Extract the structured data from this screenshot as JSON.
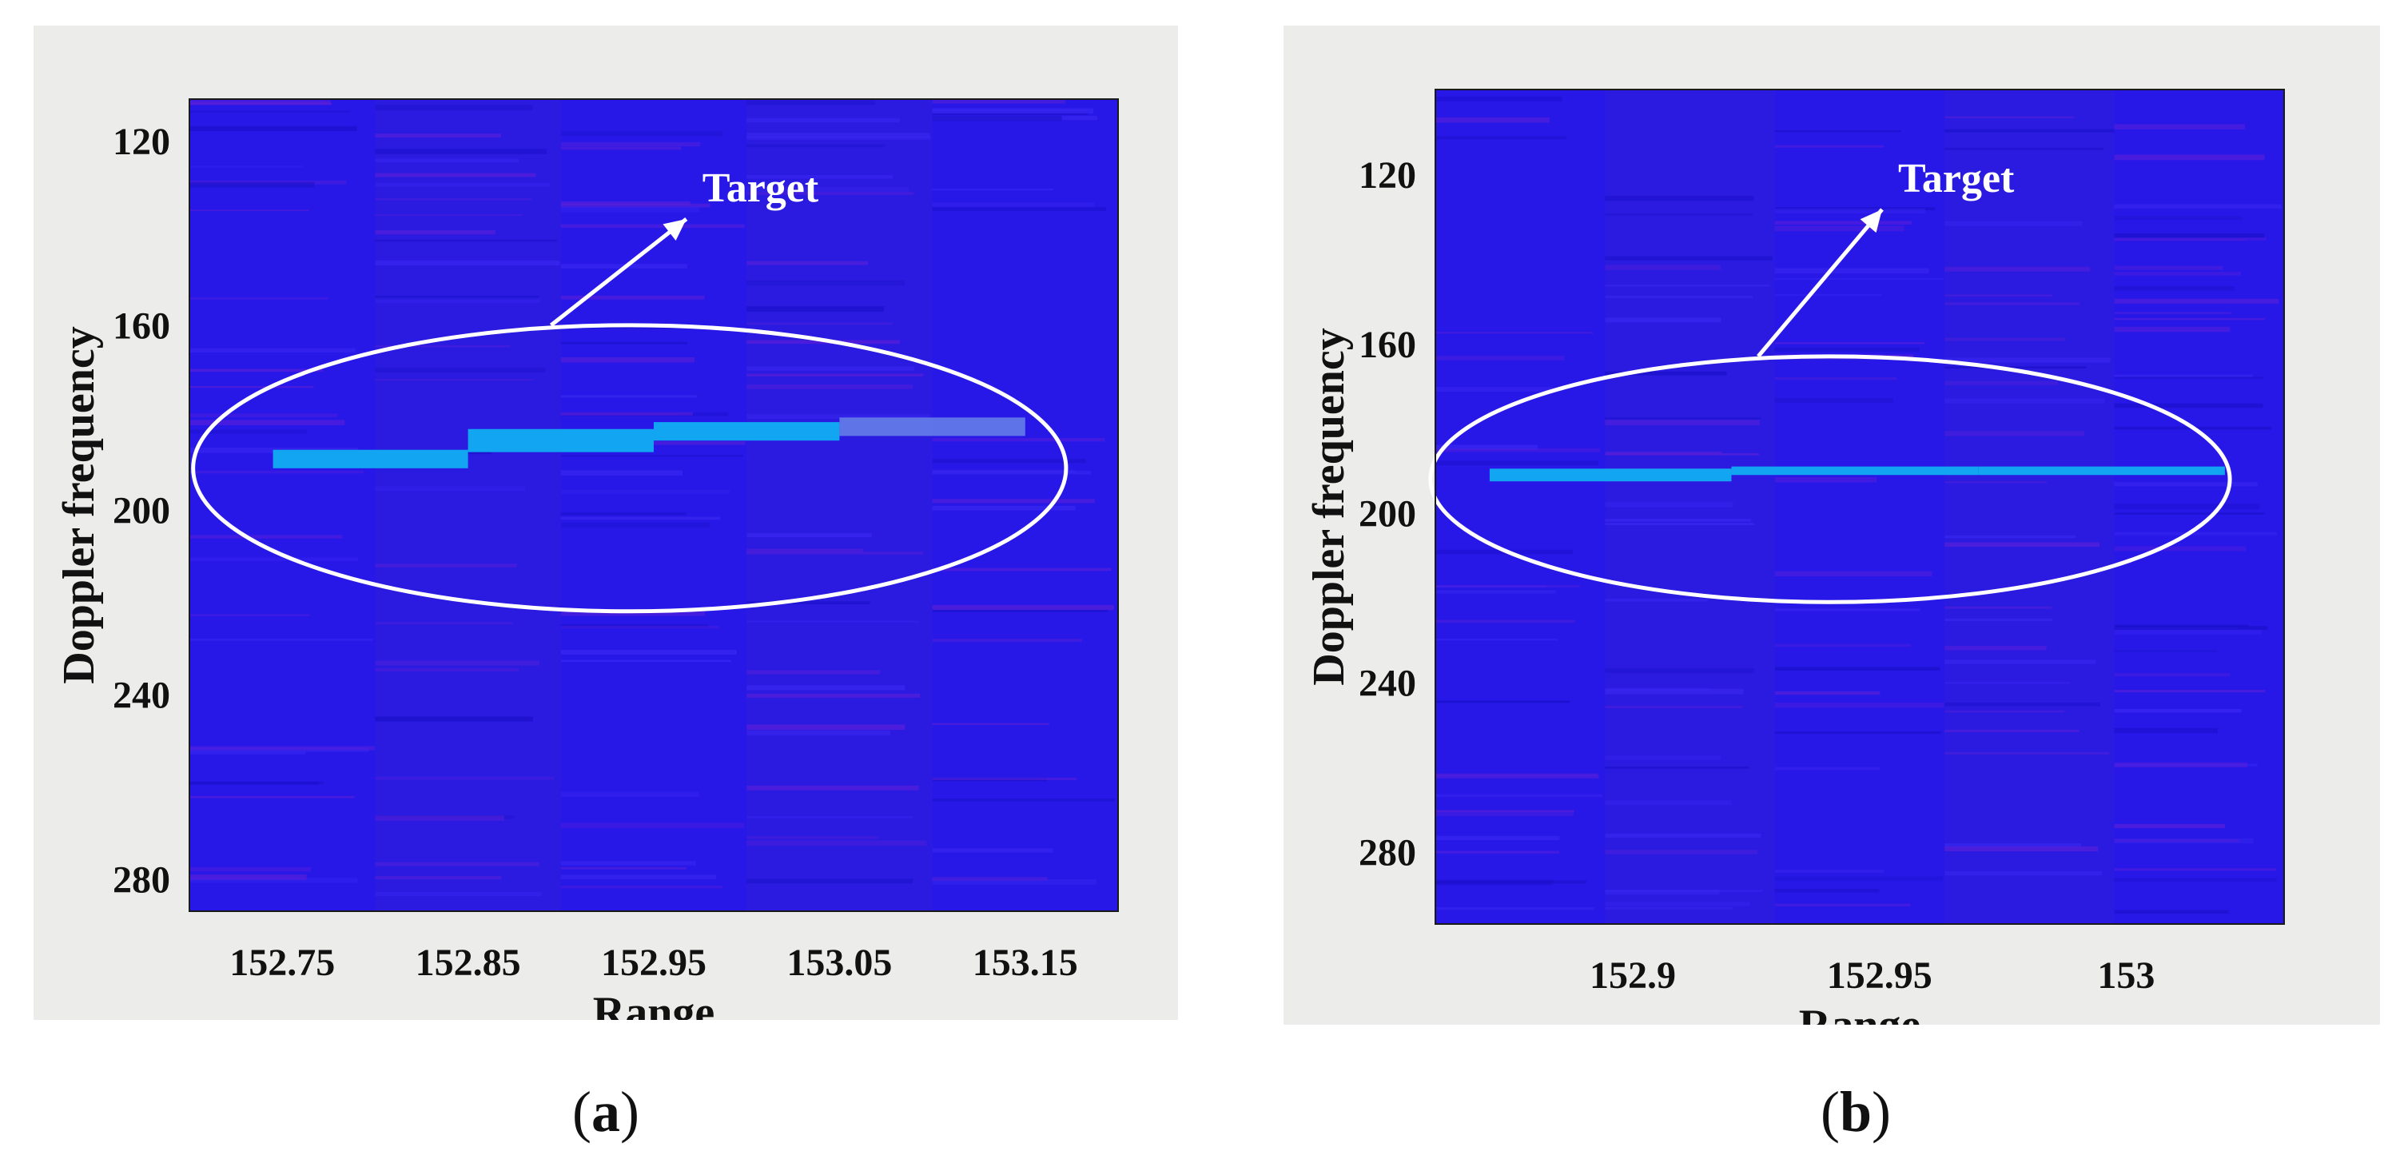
{
  "captions": [
    {
      "open": "(",
      "letter": "a",
      "close": ")"
    },
    {
      "open": "(",
      "letter": "b",
      "close": ")"
    }
  ],
  "chart_data": [
    {
      "type": "heatmap",
      "xlabel": "Range",
      "ylabel": "Doppler frequency",
      "xticks": [
        "152.75",
        "152.85",
        "152.95",
        "153.05",
        "153.15"
      ],
      "xtick_values": [
        152.75,
        152.85,
        152.95,
        153.05,
        153.15
      ],
      "yticks": [
        "120",
        "160",
        "200",
        "240",
        "280"
      ],
      "ytick_values": [
        120,
        160,
        200,
        240,
        280
      ],
      "xlim": [
        152.7,
        153.2
      ],
      "ylim": [
        111,
        287
      ],
      "y_reversed": true,
      "annotation": "Target",
      "colors": {
        "background": "#2a1ae6",
        "target": "#12a6f2",
        "ellipse": "#ffffff"
      },
      "target_segments": [
        {
          "x0": 152.745,
          "x1": 152.85,
          "y": 189,
          "thickness": 4
        },
        {
          "x0": 152.85,
          "x1": 152.95,
          "y": 185,
          "thickness": 5
        },
        {
          "x0": 152.95,
          "x1": 153.05,
          "y": 183,
          "thickness": 4
        },
        {
          "x0": 153.05,
          "x1": 153.15,
          "y": 182,
          "thickness": 4,
          "faint": true
        }
      ],
      "ellipse": {
        "cx": 152.937,
        "cy": 191,
        "rx": 0.235,
        "ry": 31
      }
    },
    {
      "type": "heatmap",
      "xlabel": "Range",
      "ylabel": "Doppler frequency",
      "xticks": [
        "152.9",
        "152.95",
        "153"
      ],
      "xtick_values": [
        152.9,
        152.95,
        153.0
      ],
      "yticks": [
        "120",
        "160",
        "200",
        "240",
        "280"
      ],
      "ytick_values": [
        120,
        160,
        200,
        240,
        280
      ],
      "xlim": [
        152.86,
        153.032
      ],
      "ylim": [
        100,
        297
      ],
      "y_reversed": true,
      "annotation": "Target",
      "colors": {
        "background": "#2a1ae6",
        "target": "#12a6f2",
        "ellipse": "#ffffff"
      },
      "target_segments": [
        {
          "x0": 152.871,
          "x1": 152.92,
          "y": 191,
          "thickness": 3
        },
        {
          "x0": 152.92,
          "x1": 152.97,
          "y": 190,
          "thickness": 2
        },
        {
          "x0": 152.97,
          "x1": 153.02,
          "y": 190,
          "thickness": 2
        }
      ],
      "ellipse": {
        "cx": 152.94,
        "cy": 192,
        "rx": 0.081,
        "ry": 29
      }
    }
  ]
}
